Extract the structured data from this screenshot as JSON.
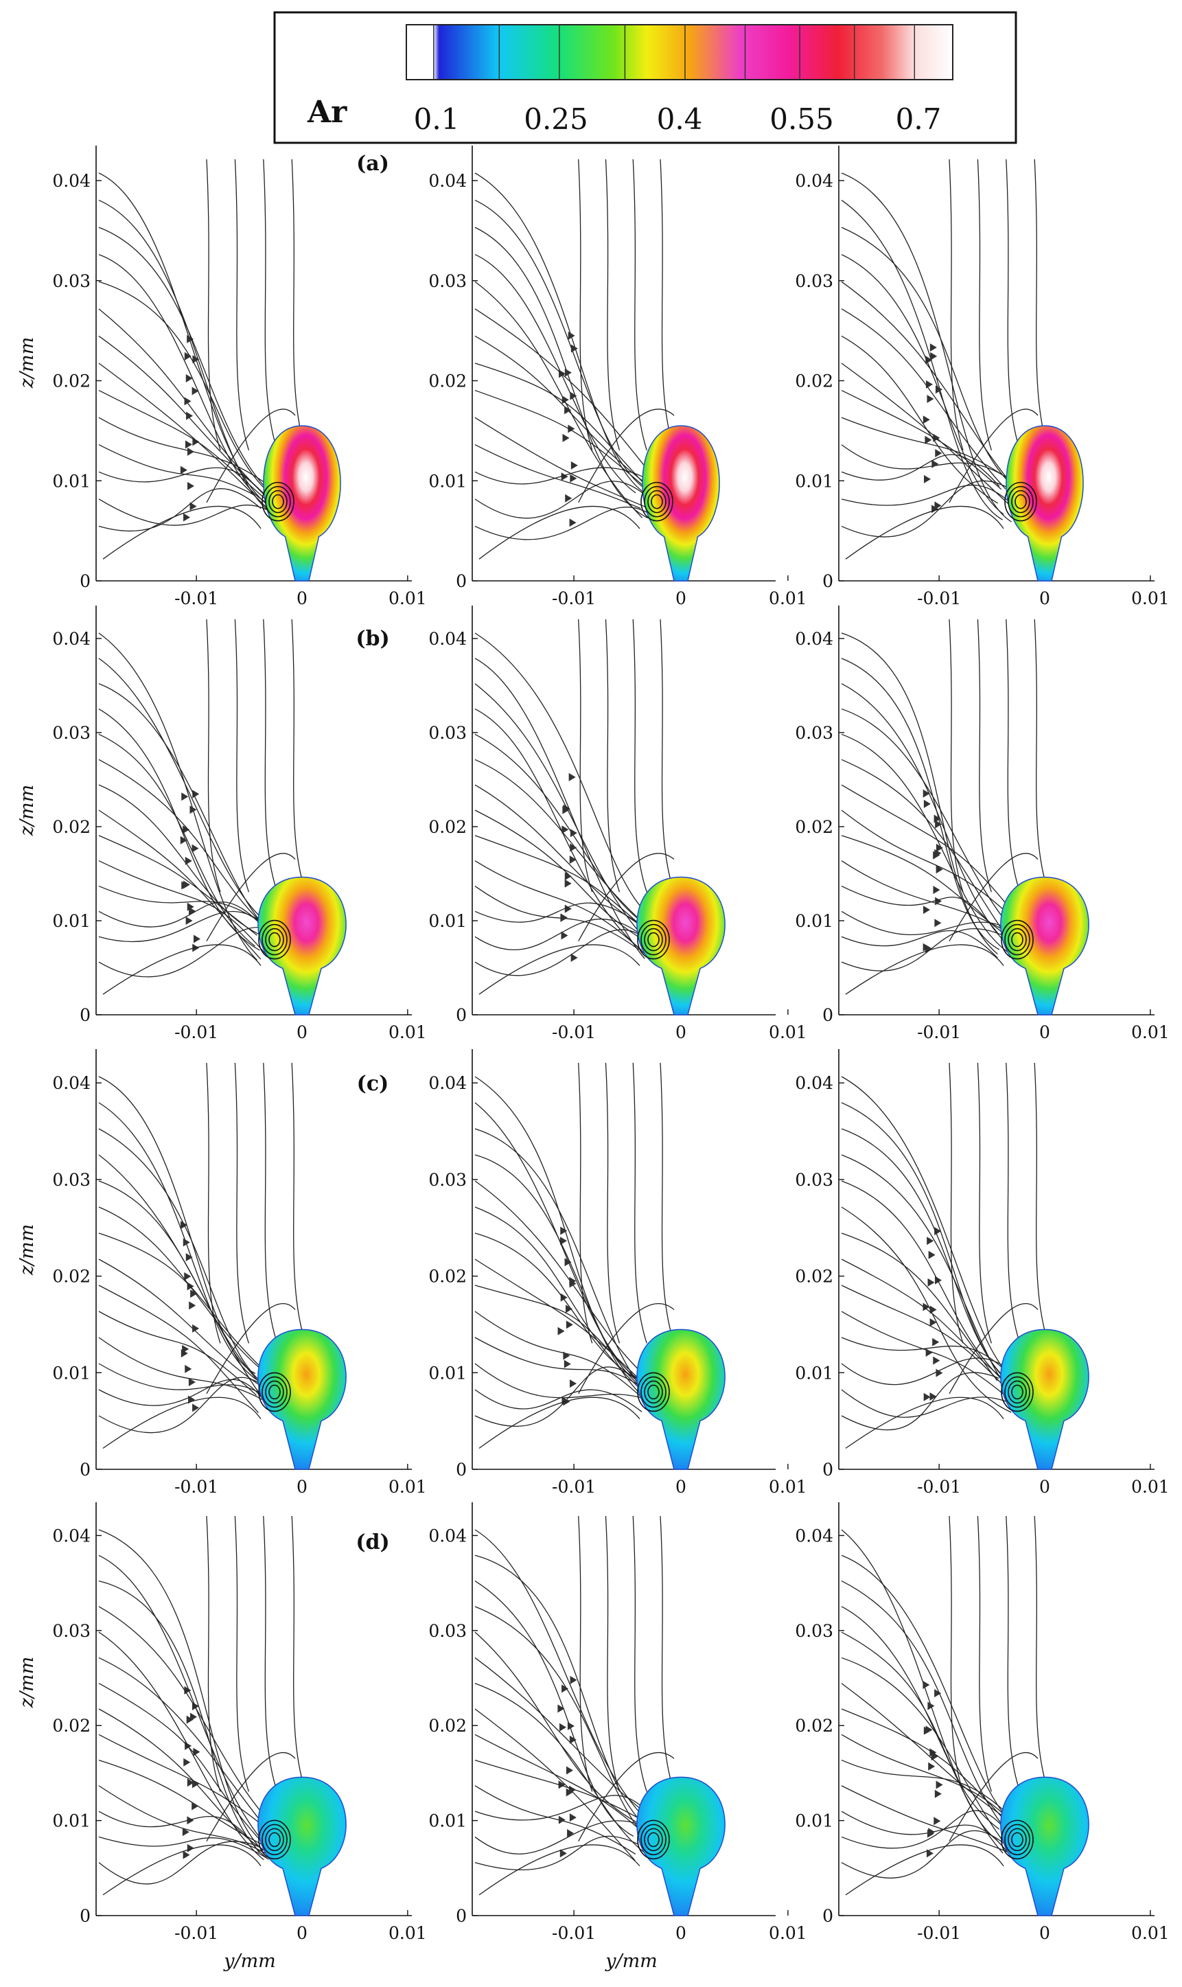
{
  "colorbar": {
    "title": "Ar",
    "tick_labels": [
      "0.1",
      "0.25",
      "0.4",
      "0.55",
      "0.7"
    ],
    "colors": [
      "#ffffff",
      "#1e24d8",
      "#12c8f4",
      "#16e07a",
      "#72e51a",
      "#f2ee10",
      "#f6a414",
      "#ee3fc6",
      "#f21c9c",
      "#f02038",
      "#f26a6a",
      "#fcdede",
      "#ffffff"
    ]
  },
  "axes": {
    "x_tick_labels": [
      "-0.01",
      "0",
      "0.01"
    ],
    "z_tick_labels": [
      "0",
      "0.01",
      "0.02",
      "0.03",
      "0.04"
    ],
    "z_axis_label": "z/mm",
    "y_axis_label": "y/mm"
  },
  "rows": [
    {
      "label": "(a)"
    },
    {
      "label": "(b)"
    },
    {
      "label": "(c)"
    },
    {
      "label": "(d)"
    }
  ]
}
